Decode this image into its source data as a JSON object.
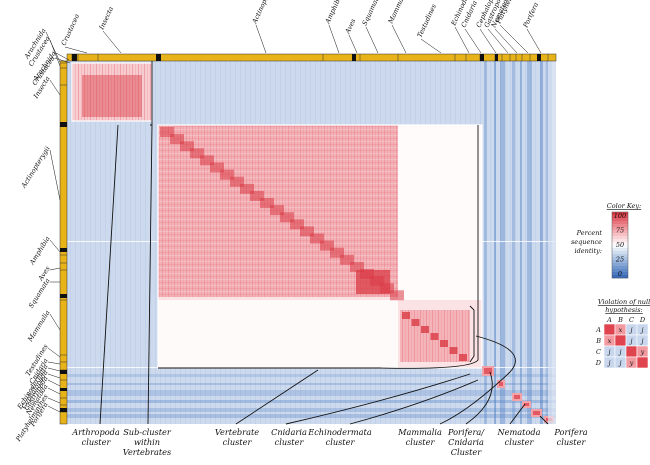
{
  "top_taxa": [
    {
      "label": "Crustacea"
    },
    {
      "label": "Insecta"
    },
    {
      "label": "Actinopterygii"
    },
    {
      "label": "Amphibia"
    },
    {
      "label": "Aves"
    },
    {
      "label": "Squamata"
    },
    {
      "label": "Mammalia"
    },
    {
      "label": "Testudines"
    },
    {
      "label": "Echinodermata"
    },
    {
      "label": "Cnidaria"
    },
    {
      "label": "Cephalopoda"
    },
    {
      "label": "Gastropoda"
    },
    {
      "label": "Nematoda"
    },
    {
      "label": "Platyhelminthes"
    },
    {
      "label": "Porifera"
    }
  ],
  "top_taxa_left": [
    {
      "label": "Arachnida"
    },
    {
      "label": "Crustacea"
    }
  ],
  "left_taxa": [
    {
      "label": "Arachnida"
    },
    {
      "label": "Crustacea"
    },
    {
      "label": "Insecta"
    },
    {
      "label": "Actinopterygii"
    },
    {
      "label": "Amphibia"
    },
    {
      "label": "Aves"
    },
    {
      "label": "Squamata"
    },
    {
      "label": "Mammalia"
    },
    {
      "label": "Testudines"
    },
    {
      "label": "Cnidaria"
    },
    {
      "label": "Echinodermata"
    },
    {
      "label": "Cephalopoda"
    },
    {
      "label": "Gastropoda"
    },
    {
      "label": "Nematoda"
    },
    {
      "label": "Platyhelminthes"
    },
    {
      "label": "Porifera"
    }
  ],
  "cluster_labels": [
    {
      "lines": [
        "Arthropoda",
        "cluster"
      ]
    },
    {
      "lines": [
        "Sub-cluster",
        "within",
        "Vertebrates"
      ]
    },
    {
      "lines": [
        "Vertebrate",
        "cluster"
      ]
    },
    {
      "lines": [
        "Cnidaria",
        "cluster"
      ]
    },
    {
      "lines": [
        "Echinodermata",
        "cluster"
      ]
    },
    {
      "lines": [
        "Mammalia",
        "cluster"
      ]
    },
    {
      "lines": [
        "Porifera/",
        "Cnidaria",
        "Cluster"
      ]
    },
    {
      "lines": [
        "Nematoda",
        "cluster"
      ]
    },
    {
      "lines": [
        "Porifera",
        "cluster"
      ]
    }
  ],
  "color_key": {
    "title": "Color Key:",
    "label_lines": [
      "Percent",
      "sequence",
      "identity:"
    ],
    "ticks": [
      "100",
      "75",
      "50",
      "25",
      "0"
    ],
    "colors": [
      "#d93b45",
      "#f2a0a6",
      "#ffffff",
      "#9bb7dd",
      "#3c6cb9"
    ]
  },
  "null_hypothesis": {
    "title_lines": [
      "Violation of null",
      "hypothesis:"
    ],
    "cols": [
      "A",
      "B",
      "C",
      "D"
    ],
    "rows": [
      {
        "label": "A",
        "cells": [
          "",
          "x",
          "j",
          "j"
        ]
      },
      {
        "label": "B",
        "cells": [
          "x",
          "",
          "j",
          "j"
        ]
      },
      {
        "label": "C",
        "cells": [
          "j",
          "j",
          "",
          "y"
        ]
      },
      {
        "label": "D",
        "cells": [
          "j",
          "j",
          "y",
          ""
        ]
      }
    ],
    "colors": {
      "within": "#e0454f",
      "x": "#f29aa0",
      "y": "#f29aa0",
      "j": "#c8d6ee"
    }
  },
  "colors": {
    "bar": "#e8b318",
    "heat_high": "#d93b45",
    "heat_mid": "#f4b9bd",
    "blue_light": "#cfdcef",
    "blue_mid": "#9bb7dd",
    "blue_dark": "#4f7fc4",
    "line": "#111111"
  }
}
